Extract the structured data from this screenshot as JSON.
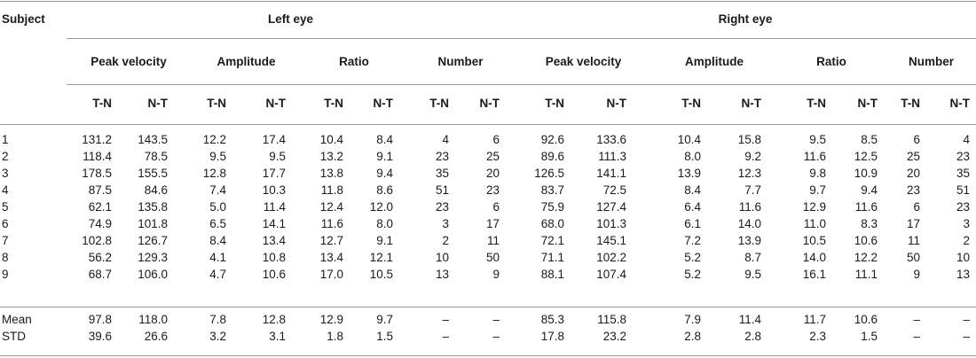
{
  "header": {
    "subject": "Subject",
    "left_eye": "Left eye",
    "right_eye": "Right eye",
    "groups": [
      "Peak velocity",
      "Amplitude",
      "Ratio",
      "Number"
    ],
    "subcols": [
      "T-N",
      "N-T"
    ]
  },
  "rows": [
    {
      "subject": "1",
      "values": [
        "131.2",
        "143.5",
        "12.2",
        "17.4",
        "10.4",
        "8.4",
        "4",
        "6",
        "92.6",
        "133.6",
        "10.4",
        "15.8",
        "9.5",
        "8.5",
        "6",
        "4"
      ]
    },
    {
      "subject": "2",
      "values": [
        "118.4",
        "78.5",
        "9.5",
        "9.5",
        "13.2",
        "9.1",
        "23",
        "25",
        "89.6",
        "111.3",
        "8.0",
        "9.2",
        "11.6",
        "12.5",
        "25",
        "23"
      ]
    },
    {
      "subject": "3",
      "values": [
        "178.5",
        "155.5",
        "12.8",
        "17.7",
        "13.8",
        "9.4",
        "35",
        "20",
        "126.5",
        "141.1",
        "13.9",
        "12.3",
        "9.8",
        "10.9",
        "20",
        "35"
      ]
    },
    {
      "subject": "4",
      "values": [
        "87.5",
        "84.6",
        "7.4",
        "10.3",
        "11.8",
        "8.6",
        "51",
        "23",
        "83.7",
        "72.5",
        "8.4",
        "7.7",
        "9.7",
        "9.4",
        "23",
        "51"
      ]
    },
    {
      "subject": "5",
      "values": [
        "62.1",
        "135.8",
        "5.0",
        "11.4",
        "12.4",
        "12.0",
        "23",
        "6",
        "75.9",
        "127.4",
        "6.4",
        "11.6",
        "12.9",
        "11.6",
        "6",
        "23"
      ]
    },
    {
      "subject": "6",
      "values": [
        "74.9",
        "101.8",
        "6.5",
        "14.1",
        "11.6",
        "8.0",
        "3",
        "17",
        "68.0",
        "101.3",
        "6.1",
        "14.0",
        "11.0",
        "8.3",
        "17",
        "3"
      ]
    },
    {
      "subject": "7",
      "values": [
        "102.8",
        "126.7",
        "8.4",
        "13.4",
        "12.7",
        "9.1",
        "2",
        "11",
        "72.1",
        "145.1",
        "7.2",
        "13.9",
        "10.5",
        "10.6",
        "11",
        "2"
      ]
    },
    {
      "subject": "8",
      "values": [
        "56.2",
        "129.3",
        "4.1",
        "10.8",
        "13.4",
        "12.1",
        "10",
        "50",
        "71.1",
        "102.2",
        "5.2",
        "8.7",
        "14.0",
        "12.2",
        "50",
        "10"
      ]
    },
    {
      "subject": "9",
      "values": [
        "68.7",
        "106.0",
        "4.7",
        "10.6",
        "17.0",
        "10.5",
        "13",
        "9",
        "88.1",
        "107.4",
        "5.2",
        "9.5",
        "16.1",
        "11.1",
        "9",
        "13"
      ]
    }
  ],
  "summary": [
    {
      "subject": "Mean",
      "values": [
        "97.8",
        "118.0",
        "7.8",
        "12.8",
        "12.9",
        "9.7",
        "–",
        "–",
        "85.3",
        "115.8",
        "7.9",
        "11.4",
        "11.7",
        "10.6",
        "–",
        "–"
      ]
    },
    {
      "subject": "STD",
      "values": [
        "39.6",
        "26.6",
        "3.2",
        "3.1",
        "1.8",
        "1.5",
        "–",
        "–",
        "17.8",
        "23.2",
        "2.8",
        "2.8",
        "2.3",
        "1.5",
        "–",
        "–"
      ]
    }
  ]
}
